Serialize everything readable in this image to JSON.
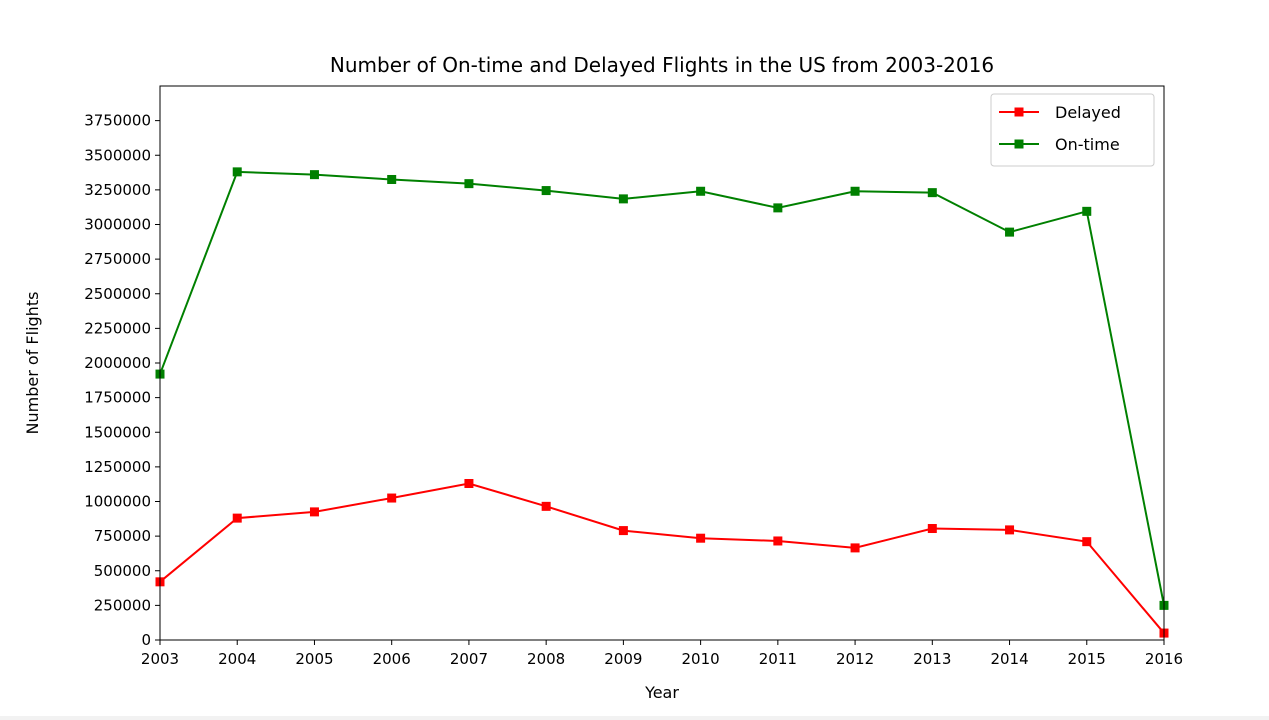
{
  "chart_data": {
    "type": "line",
    "title": "Number of On-time and Delayed Flights in the US from 2003-2016",
    "xlabel": "Year",
    "ylabel": "Number of Flights",
    "x": [
      2003,
      2004,
      2005,
      2006,
      2007,
      2008,
      2009,
      2010,
      2011,
      2012,
      2013,
      2014,
      2015,
      2016
    ],
    "xlim": [
      2003,
      2016
    ],
    "ylim": [
      0,
      4000000
    ],
    "yticks": [
      0,
      250000,
      500000,
      750000,
      1000000,
      1250000,
      1500000,
      1750000,
      2000000,
      2250000,
      2500000,
      2750000,
      3000000,
      3250000,
      3500000,
      3750000
    ],
    "grid": false,
    "legend_position": "upper right",
    "series": [
      {
        "name": "Delayed",
        "color": "#ff0000",
        "marker": "square",
        "values": [
          420000,
          880000,
          925000,
          1025000,
          1130000,
          965000,
          790000,
          735000,
          715000,
          665000,
          805000,
          795000,
          710000,
          50000
        ]
      },
      {
        "name": "On-time",
        "color": "#008000",
        "marker": "square",
        "values": [
          1920000,
          3380000,
          3360000,
          3325000,
          3295000,
          3245000,
          3185000,
          3240000,
          3120000,
          3240000,
          3230000,
          2945000,
          3095000,
          250000
        ]
      }
    ]
  }
}
